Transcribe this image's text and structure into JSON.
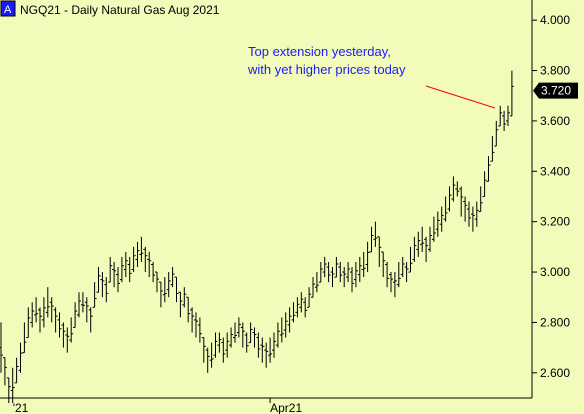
{
  "chart_data": {
    "type": "bar",
    "style": "ohlc",
    "symbol_badge": "A",
    "title": "NGQ21 - Daily  Natural Gas Aug 2021",
    "ylim": [
      2.5,
      4.08
    ],
    "yticks": [
      "2.600",
      "2.800",
      "3.000",
      "3.200",
      "3.400",
      "3.600",
      "3.800",
      "4.000"
    ],
    "xticks": [
      {
        "label": "'21",
        "index": 3
      },
      {
        "label": "Apr21",
        "index": 69
      }
    ],
    "last_price": "3.720",
    "annotation": {
      "lines": [
        "Top extension yesterday,",
        "with yet higher prices today"
      ],
      "color": "#1a1aff"
    },
    "highlight_bar_index": 132,
    "highlight_color": "#ff33ff",
    "colors": {
      "background": "#f2fbb9",
      "bars": "#000000",
      "arrow": "#ff0000",
      "label_box": "#000000"
    },
    "grid": false,
    "bars_hl": [
      [
        2.6,
        2.8
      ],
      [
        2.55,
        2.66
      ],
      [
        2.48,
        2.58
      ],
      [
        2.5,
        2.62
      ],
      [
        2.56,
        2.66
      ],
      [
        2.6,
        2.72
      ],
      [
        2.68,
        2.8
      ],
      [
        2.74,
        2.86
      ],
      [
        2.78,
        2.88
      ],
      [
        2.8,
        2.9
      ],
      [
        2.76,
        2.86
      ],
      [
        2.78,
        2.9
      ],
      [
        2.82,
        2.94
      ],
      [
        2.8,
        2.9
      ],
      [
        2.76,
        2.86
      ],
      [
        2.74,
        2.84
      ],
      [
        2.7,
        2.8
      ],
      [
        2.68,
        2.78
      ],
      [
        2.72,
        2.82
      ],
      [
        2.78,
        2.88
      ],
      [
        2.82,
        2.92
      ],
      [
        2.84,
        2.92
      ],
      [
        2.8,
        2.9
      ],
      [
        2.76,
        2.86
      ],
      [
        2.86,
        2.96
      ],
      [
        2.92,
        3.02
      ],
      [
        2.9,
        3.0
      ],
      [
        2.88,
        2.98
      ],
      [
        2.96,
        3.06
      ],
      [
        2.94,
        3.04
      ],
      [
        2.92,
        3.02
      ],
      [
        2.96,
        3.06
      ],
      [
        2.98,
        3.08
      ],
      [
        2.96,
        3.06
      ],
      [
        3.0,
        3.1
      ],
      [
        3.02,
        3.12
      ],
      [
        3.04,
        3.14
      ],
      [
        3.0,
        3.1
      ],
      [
        2.98,
        3.08
      ],
      [
        2.96,
        3.04
      ],
      [
        2.92,
        3.0
      ],
      [
        2.86,
        2.96
      ],
      [
        2.88,
        2.98
      ],
      [
        2.9,
        3.0
      ],
      [
        2.94,
        3.02
      ],
      [
        2.88,
        2.98
      ],
      [
        2.82,
        2.92
      ],
      [
        2.86,
        2.94
      ],
      [
        2.8,
        2.9
      ],
      [
        2.76,
        2.86
      ],
      [
        2.74,
        2.84
      ],
      [
        2.72,
        2.82
      ],
      [
        2.64,
        2.74
      ],
      [
        2.6,
        2.7
      ],
      [
        2.62,
        2.72
      ],
      [
        2.66,
        2.76
      ],
      [
        2.68,
        2.76
      ],
      [
        2.64,
        2.74
      ],
      [
        2.66,
        2.76
      ],
      [
        2.7,
        2.78
      ],
      [
        2.72,
        2.8
      ],
      [
        2.74,
        2.82
      ],
      [
        2.7,
        2.8
      ],
      [
        2.68,
        2.76
      ],
      [
        2.72,
        2.8
      ],
      [
        2.7,
        2.78
      ],
      [
        2.66,
        2.76
      ],
      [
        2.64,
        2.74
      ],
      [
        2.62,
        2.72
      ],
      [
        2.64,
        2.74
      ],
      [
        2.66,
        2.76
      ],
      [
        2.7,
        2.8
      ],
      [
        2.72,
        2.82
      ],
      [
        2.74,
        2.84
      ],
      [
        2.76,
        2.86
      ],
      [
        2.8,
        2.88
      ],
      [
        2.82,
        2.9
      ],
      [
        2.84,
        2.92
      ],
      [
        2.82,
        2.9
      ],
      [
        2.86,
        2.94
      ],
      [
        2.9,
        2.98
      ],
      [
        2.92,
        3.0
      ],
      [
        2.96,
        3.04
      ],
      [
        2.98,
        3.06
      ],
      [
        2.96,
        3.04
      ],
      [
        2.94,
        3.02
      ],
      [
        2.98,
        3.06
      ],
      [
        2.96,
        3.04
      ],
      [
        2.94,
        3.02
      ],
      [
        2.96,
        3.04
      ],
      [
        2.92,
        3.02
      ],
      [
        2.94,
        3.04
      ],
      [
        2.96,
        3.06
      ],
      [
        2.98,
        3.08
      ],
      [
        3.0,
        3.12
      ],
      [
        3.08,
        3.18
      ],
      [
        3.1,
        3.2
      ],
      [
        3.02,
        3.14
      ],
      [
        2.98,
        3.08
      ],
      [
        2.94,
        3.04
      ],
      [
        2.92,
        3.0
      ],
      [
        2.9,
        3.0
      ],
      [
        2.94,
        3.04
      ],
      [
        2.98,
        3.06
      ],
      [
        2.96,
        3.04
      ],
      [
        3.0,
        3.1
      ],
      [
        3.04,
        3.14
      ],
      [
        3.06,
        3.16
      ],
      [
        3.08,
        3.18
      ],
      [
        3.04,
        3.14
      ],
      [
        3.08,
        3.18
      ],
      [
        3.12,
        3.22
      ],
      [
        3.14,
        3.24
      ],
      [
        3.16,
        3.26
      ],
      [
        3.2,
        3.3
      ],
      [
        3.24,
        3.34
      ],
      [
        3.28,
        3.38
      ],
      [
        3.3,
        3.36
      ],
      [
        3.22,
        3.34
      ],
      [
        3.2,
        3.3
      ],
      [
        3.18,
        3.28
      ],
      [
        3.16,
        3.26
      ],
      [
        3.18,
        3.28
      ],
      [
        3.24,
        3.34
      ],
      [
        3.3,
        3.4
      ],
      [
        3.36,
        3.46
      ],
      [
        3.44,
        3.54
      ],
      [
        3.5,
        3.6
      ],
      [
        3.58,
        3.66
      ],
      [
        3.56,
        3.64
      ],
      [
        3.58,
        3.66
      ],
      [
        3.62,
        3.8
      ]
    ]
  }
}
